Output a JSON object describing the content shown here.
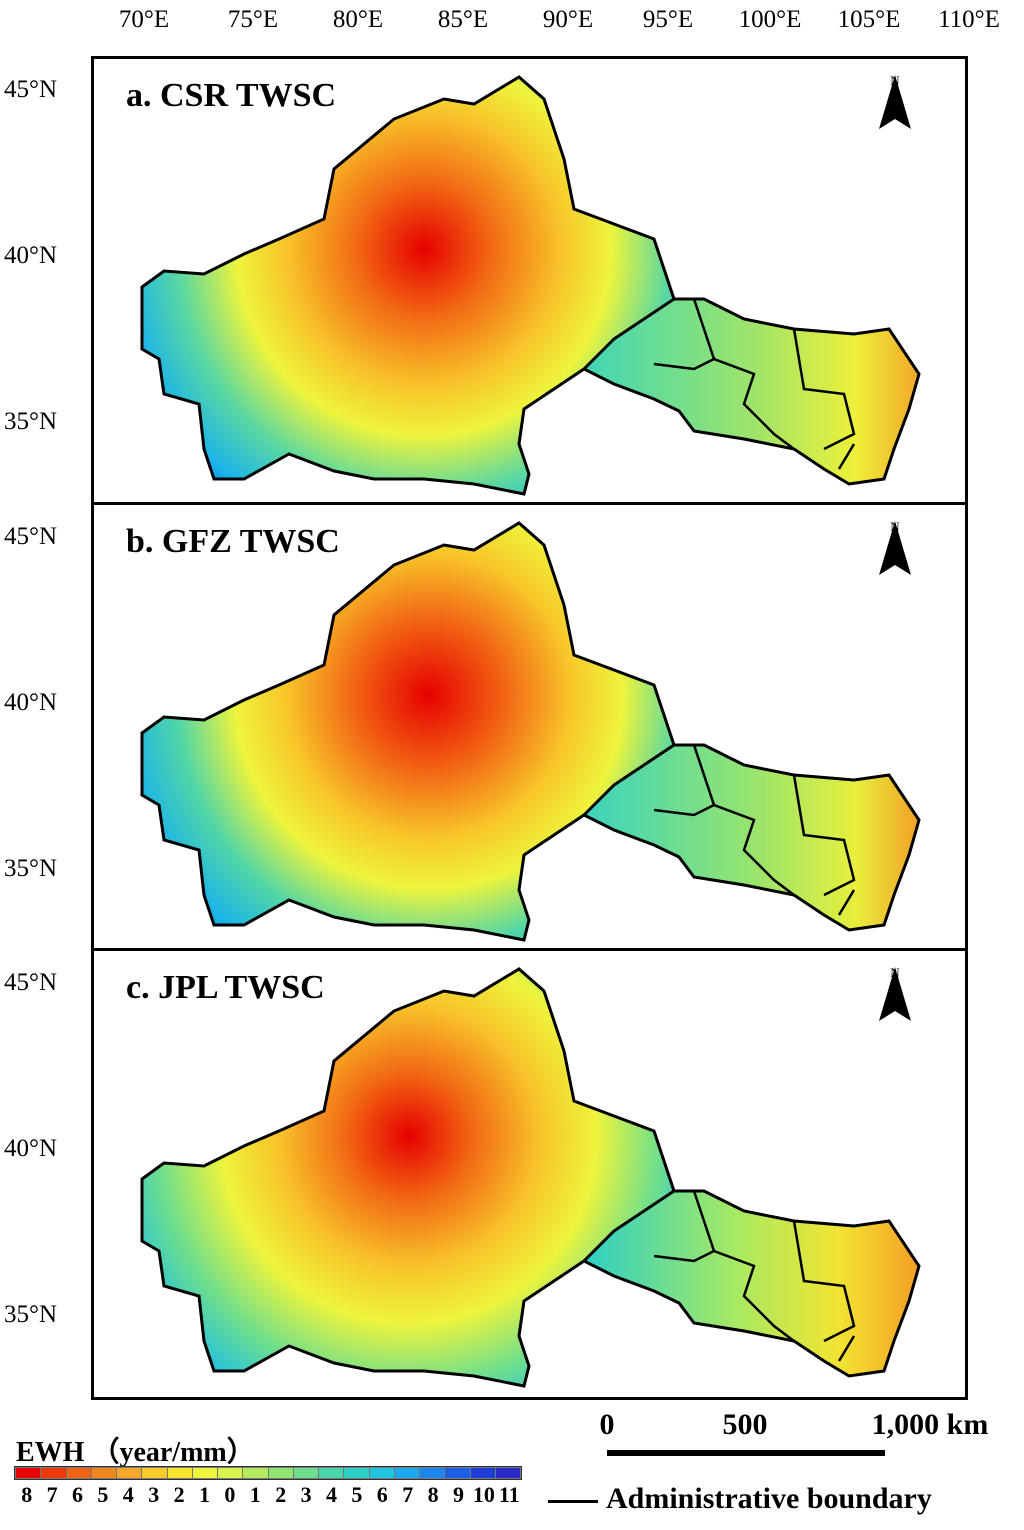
{
  "axes": {
    "longitude_labels": [
      "70°E",
      "75°E",
      "80°E",
      "85°E",
      "90°E",
      "95°E",
      "100°E",
      "105°E",
      "110°E"
    ],
    "latitude_labels": [
      "45°N",
      "40°N",
      "35°N"
    ]
  },
  "panels": [
    {
      "title": "a. CSR TWSC",
      "north_label": "N"
    },
    {
      "title": "b. GFZ TWSC",
      "north_label": "N"
    },
    {
      "title": "c. JPL TWSC",
      "north_label": "N"
    }
  ],
  "legend": {
    "title": "EWH （year/mm）",
    "tick_labels": [
      "8",
      "7",
      "6",
      "5",
      "4",
      "3",
      "2",
      "1",
      "0",
      "1",
      "2",
      "3",
      "4",
      "5",
      "6",
      "7",
      "8",
      "9",
      "10",
      "11"
    ],
    "colors": [
      "#e60000",
      "#ee3a0a",
      "#f06414",
      "#f2861e",
      "#f7a828",
      "#facc2a",
      "#f8e62c",
      "#eef53a",
      "#d6f44c",
      "#b4ec5e",
      "#90e472",
      "#6cde8e",
      "#48d6ac",
      "#2ccfc6",
      "#1ec4e0",
      "#1aa8ee",
      "#1a86f0",
      "#1c5ee8",
      "#1c3ed8",
      "#2a2ac8"
    ]
  },
  "scale_bar": {
    "labels": [
      "0",
      "500",
      "1,000 km"
    ]
  },
  "boundary_legend": {
    "label": "Administrative boundary"
  }
}
